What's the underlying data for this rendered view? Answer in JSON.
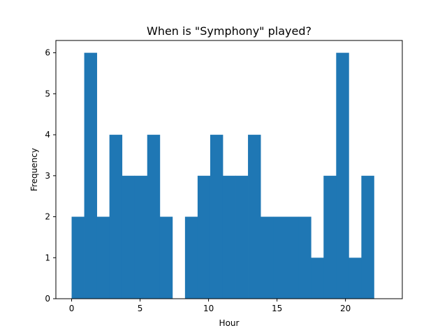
{
  "chart_data": {
    "type": "bar",
    "title": "When is \"Symphony\" played?",
    "xlabel": "Hour",
    "ylabel": "Frequency",
    "bin_start": 0,
    "bin_width": 0.92,
    "counts": [
      2,
      6,
      2,
      4,
      3,
      3,
      4,
      2,
      0,
      2,
      3,
      4,
      3,
      3,
      4,
      2,
      2,
      2,
      2,
      1,
      3,
      6,
      1,
      3
    ],
    "xlim": [
      -1.15,
      24.15
    ],
    "ylim": [
      0,
      6.3
    ],
    "xticks": [
      0,
      5,
      10,
      15,
      20
    ],
    "yticks": [
      0,
      1,
      2,
      3,
      4,
      5,
      6
    ],
    "bar_color": "#1f77b4",
    "grid": false,
    "legend": "none"
  }
}
